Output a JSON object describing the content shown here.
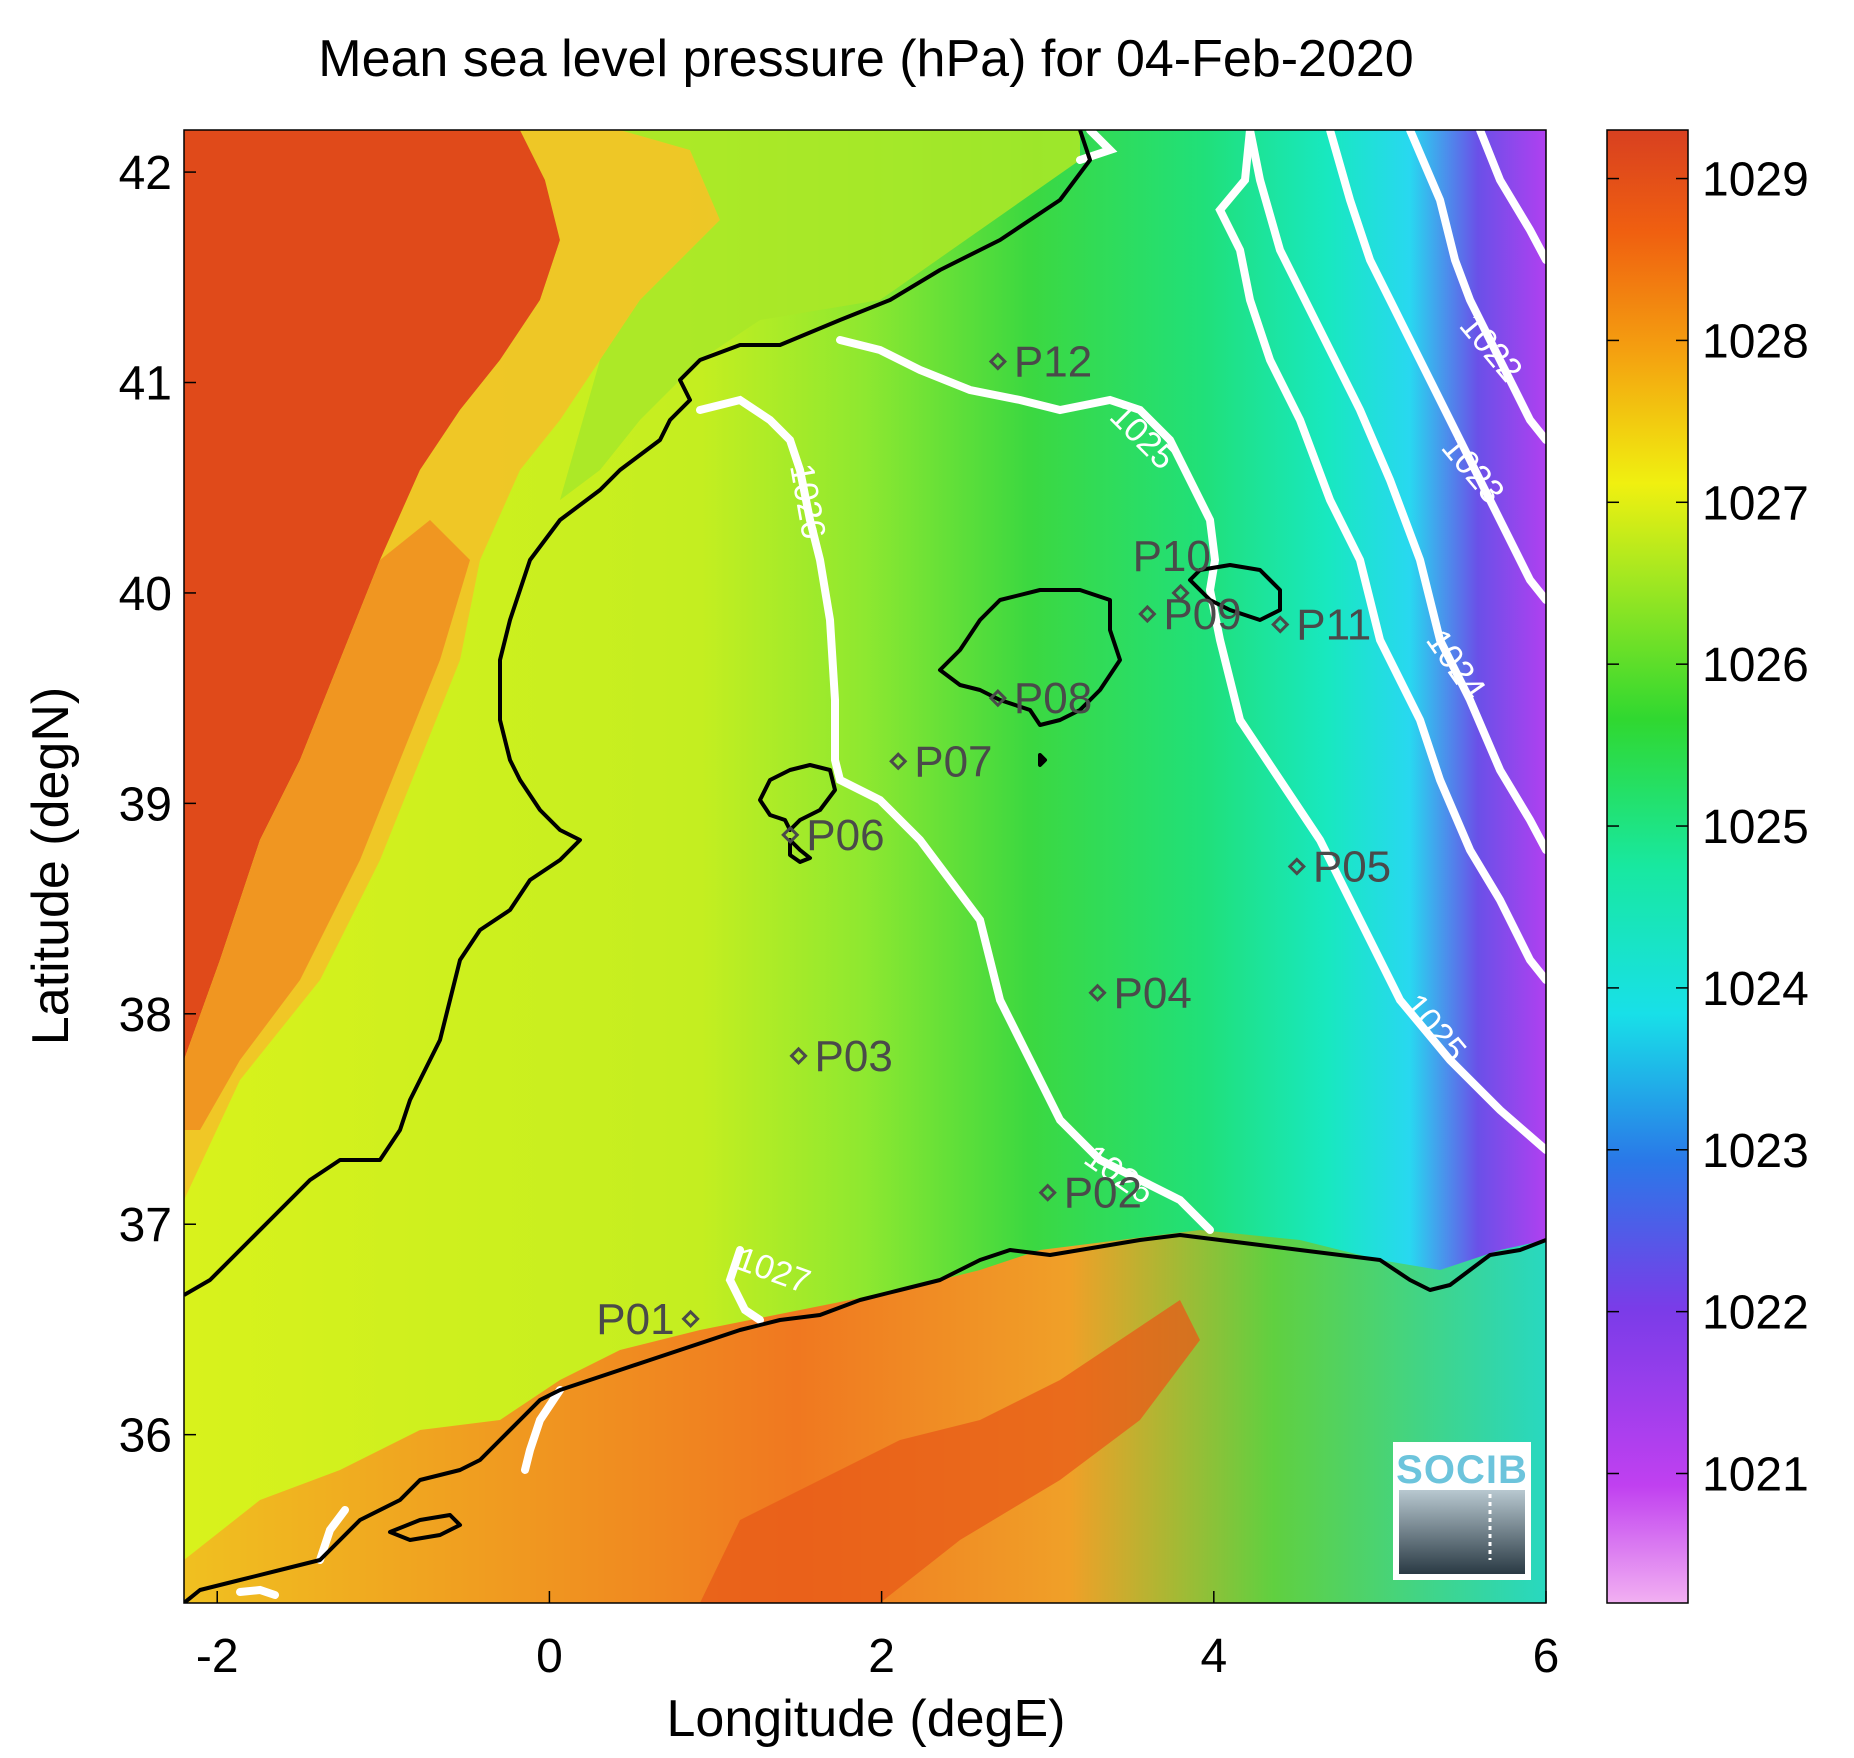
{
  "title": "Mean sea level pressure (hPa) for 04-Feb-2020",
  "chart_data": {
    "type": "heatmap",
    "xlabel": "Longitude (degE)",
    "ylabel": "Latitude (degN)",
    "xlim": [
      -2.2,
      6
    ],
    "ylim": [
      35.2,
      42.2
    ],
    "xticks": [
      "-2",
      "0",
      "2",
      "4",
      "6"
    ],
    "yticks": [
      "36",
      "37",
      "38",
      "39",
      "40",
      "41",
      "42"
    ],
    "colorbar": {
      "range": [
        1020.2,
        1029.3
      ],
      "ticks": [
        "1021",
        "1022",
        "1023",
        "1024",
        "1025",
        "1026",
        "1027",
        "1028",
        "1029"
      ]
    },
    "contour_labels": [
      "1027",
      "1026",
      "1026",
      "1025",
      "1025",
      "1024",
      "1023",
      "1022"
    ],
    "stations": [
      {
        "name": "P01",
        "lon": 0.85,
        "lat": 36.55
      },
      {
        "name": "P02",
        "lon": 3.0,
        "lat": 37.15
      },
      {
        "name": "P03",
        "lon": 1.5,
        "lat": 37.8
      },
      {
        "name": "P04",
        "lon": 3.3,
        "lat": 38.1
      },
      {
        "name": "P05",
        "lon": 4.5,
        "lat": 38.7
      },
      {
        "name": "P06",
        "lon": 1.45,
        "lat": 38.85
      },
      {
        "name": "P07",
        "lon": 2.1,
        "lat": 39.2
      },
      {
        "name": "P08",
        "lon": 2.7,
        "lat": 39.5
      },
      {
        "name": "P09",
        "lon": 3.6,
        "lat": 39.9
      },
      {
        "name": "P10",
        "lon": 3.8,
        "lat": 40.0
      },
      {
        "name": "P11",
        "lon": 4.4,
        "lat": 39.85
      },
      {
        "name": "P12",
        "lon": 2.7,
        "lat": 41.1
      }
    ]
  },
  "logo": {
    "text": "SOCIB"
  },
  "colors": {
    "land_high": "#e04a1a",
    "sea_yellow": "#d6f020",
    "sea_green": "#2ed840",
    "sea_cyan": "#18e8d0",
    "sea_purple": "#8840e8",
    "coast": "#000000",
    "contour": "#ffffff"
  }
}
